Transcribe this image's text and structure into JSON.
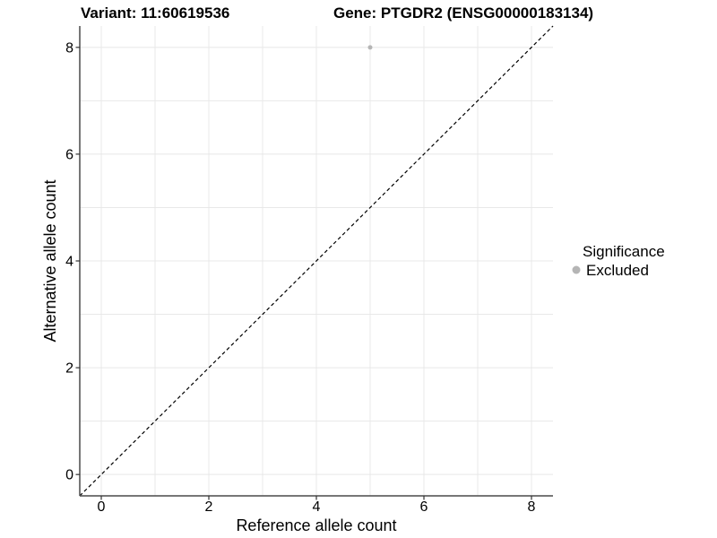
{
  "legend": {
    "title": "Significance",
    "items": [
      {
        "label": "Excluded",
        "color": "#b5b5b5"
      }
    ]
  },
  "colors": {
    "background": "#ffffff",
    "gridline": "#e8e8e8",
    "axis_line": "#4a4a4a",
    "tick_mark": "#333333",
    "tick_label": "#000000",
    "reference_line": "#000000"
  },
  "chart_data": {
    "type": "scatter",
    "title_variant": "Variant: 11:60619536",
    "title_gene": "Gene: PTGDR2 (ENSG00000183134)",
    "xlabel": "Reference allele count",
    "ylabel": "Alternative allele count",
    "xlim": [
      -0.4,
      8.4
    ],
    "ylim": [
      -0.4,
      8.4
    ],
    "xticks": [
      0,
      2,
      4,
      6,
      8
    ],
    "yticks": [
      0,
      2,
      4,
      6,
      8
    ],
    "grid": {
      "min": 0,
      "max": 8,
      "step": 1,
      "on": true
    },
    "legend_position": "right",
    "series": [
      {
        "name": "Excluded",
        "color": "#b5b5b5",
        "point_radius": 2.5,
        "points": [
          {
            "x": 5,
            "y": 8
          }
        ]
      }
    ],
    "reference_line": {
      "slope": 1,
      "intercept": 0,
      "style": "dashed"
    }
  }
}
